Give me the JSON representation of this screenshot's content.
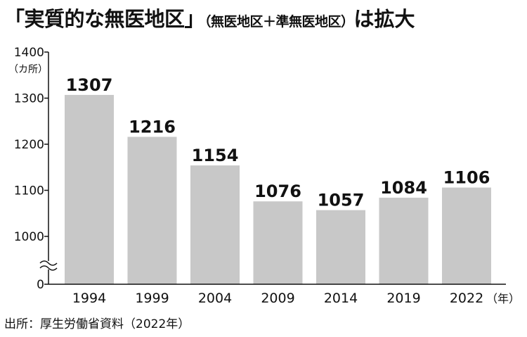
{
  "header": {
    "title_main": "「実質的な無医地区」",
    "title_sub": "（無医地区＋準無医地区）",
    "title_tail": "は拡大"
  },
  "chart_data": {
    "type": "bar",
    "categories": [
      "1994",
      "1999",
      "2004",
      "2009",
      "2014",
      "2019",
      "2022"
    ],
    "values": [
      1307,
      1216,
      1154,
      1076,
      1057,
      1084,
      1106
    ],
    "data_labels": [
      "1307",
      "1216",
      "1154",
      "1076",
      "1057",
      "1084",
      "1106"
    ],
    "ylabel": "（カ所）",
    "xunit": "（年）",
    "yticks": [
      0,
      1000,
      1100,
      1200,
      1300,
      1400
    ],
    "ytick_labels": [
      "0",
      "1000",
      "1100",
      "1200",
      "1300",
      "1400"
    ],
    "ylim": [
      950,
      1400
    ],
    "axis_break": true,
    "grid": false,
    "bar_color": "#c8c8c8"
  },
  "footer": {
    "source": "出所：厚生労働省資料（2022年）"
  }
}
